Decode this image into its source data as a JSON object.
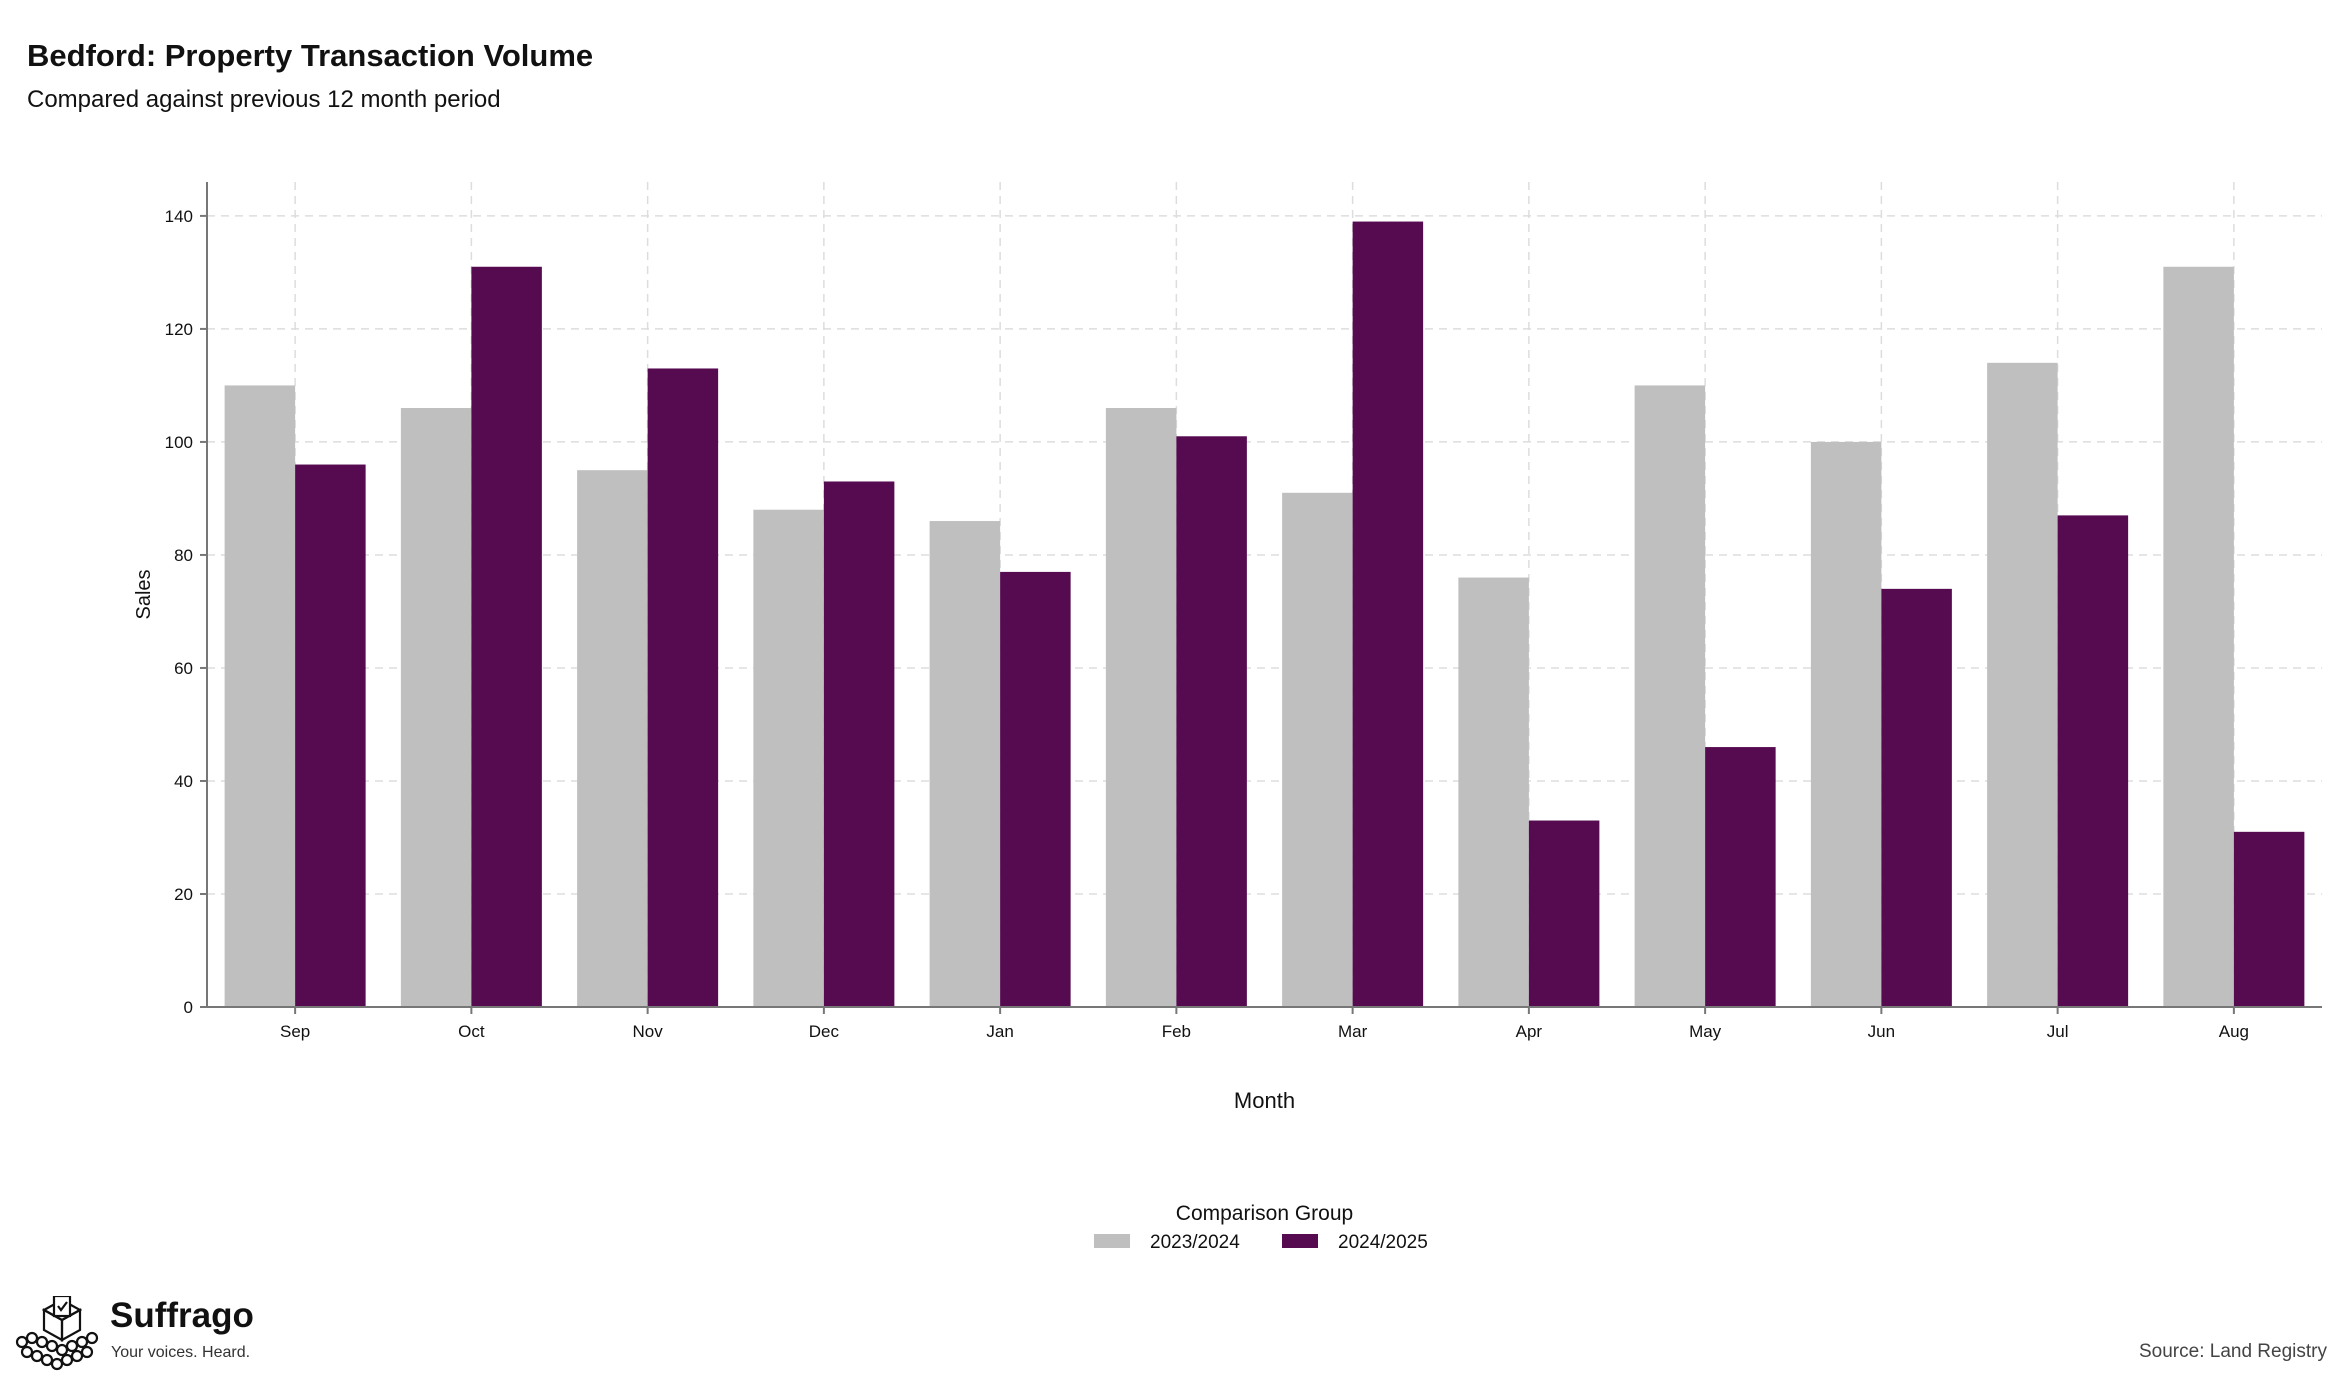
{
  "header": {
    "title": "Bedford: Property Transaction Volume",
    "subtitle": "Compared against previous 12 month period"
  },
  "footer": {
    "source": "Source: Land Registry",
    "brand_name": "Suffrago",
    "brand_tagline": "Your voices. Heard."
  },
  "colors": {
    "series_prev": "#bfbfbf",
    "series_curr": "#560b51",
    "grid": "#dddddd"
  },
  "chart_data": {
    "type": "bar",
    "xlabel": "Month",
    "ylabel": "Sales",
    "ylim": [
      0,
      146
    ],
    "yticks": [
      0,
      20,
      40,
      60,
      80,
      100,
      120,
      140
    ],
    "grid": true,
    "legend_title": "Comparison Group",
    "legend_position": "bottom",
    "categories": [
      "Sep",
      "Oct",
      "Nov",
      "Dec",
      "Jan",
      "Feb",
      "Mar",
      "Apr",
      "May",
      "Jun",
      "Jul",
      "Aug"
    ],
    "series": [
      {
        "name": "2023/2024",
        "color": "#bfbfbf",
        "values": [
          110,
          106,
          95,
          88,
          86,
          106,
          91,
          76,
          110,
          100,
          114,
          131
        ]
      },
      {
        "name": "2024/2025",
        "color": "#560b51",
        "values": [
          96,
          131,
          113,
          93,
          77,
          101,
          139,
          33,
          46,
          74,
          87,
          31
        ]
      }
    ]
  }
}
